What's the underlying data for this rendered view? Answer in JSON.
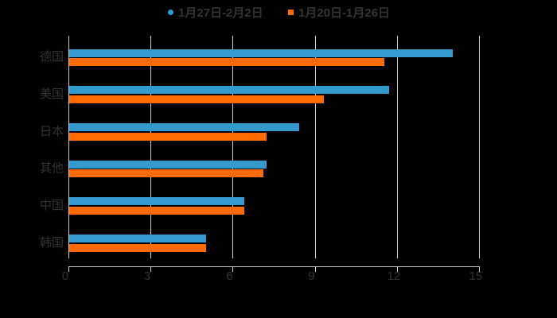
{
  "legend": {
    "items": [
      {
        "label": "1月27日-2月2日",
        "color": "#3499cc",
        "marker": "circle"
      },
      {
        "label": "1月20日-1月26日",
        "color": "#ff6b00",
        "marker": "square"
      }
    ]
  },
  "chart_data": {
    "type": "bar",
    "orientation": "horizontal",
    "title": "",
    "categories": [
      "德国",
      "美国",
      "日本",
      "其他",
      "中国",
      "韩国"
    ],
    "series": [
      {
        "name": "1月27日-2月2日",
        "color": "#3499cc",
        "values": [
          14.0,
          11.7,
          8.4,
          7.2,
          6.4,
          5.0
        ]
      },
      {
        "name": "1月20日-1月26日",
        "color": "#ff6b00",
        "values": [
          11.5,
          9.3,
          7.2,
          7.1,
          6.4,
          5.0
        ]
      }
    ],
    "x_axis": {
      "ticks": [
        0,
        3,
        6,
        9,
        12,
        15
      ],
      "min": 0,
      "max": 15
    },
    "grid": true,
    "legend_position": "top",
    "background": "#000000"
  },
  "colors": {
    "background": "#000000",
    "series_blue": "#3499cc",
    "series_orange": "#ff6b00",
    "axis_line": "#cccccc",
    "gridline": "#cccccc",
    "text": "#333333"
  }
}
